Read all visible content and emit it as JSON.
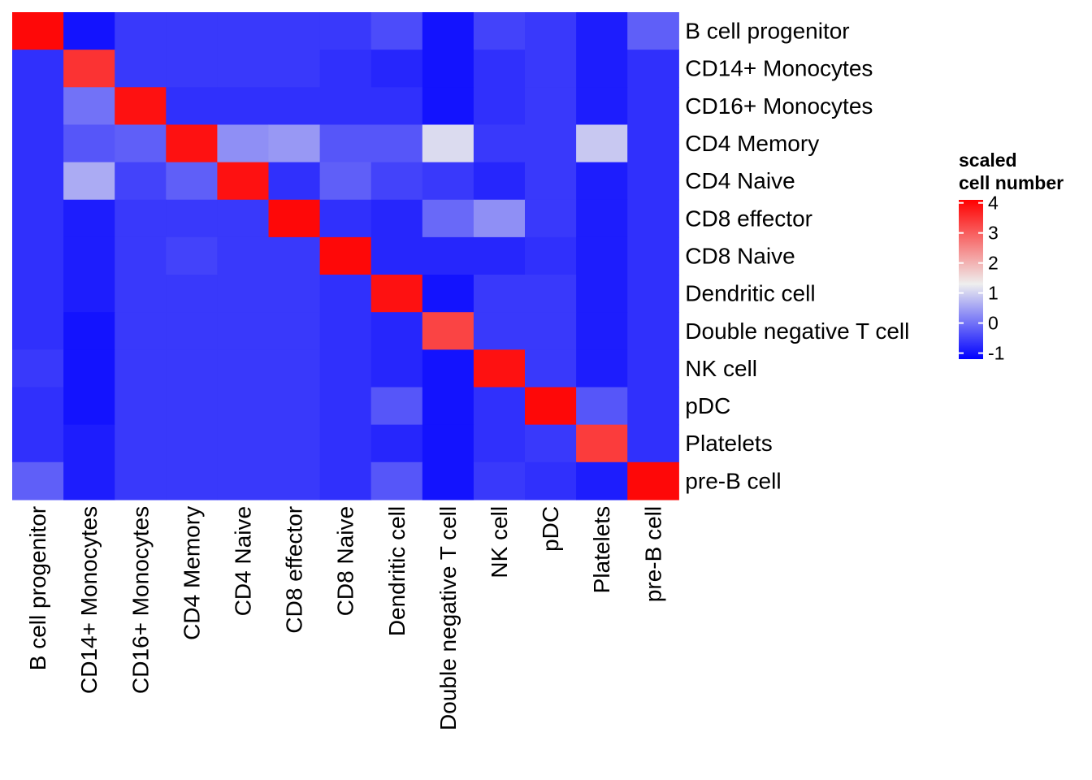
{
  "chart_data": {
    "type": "heatmap",
    "rows": [
      "B cell progenitor",
      "CD14+ Monocytes",
      "CD16+ Monocytes",
      "CD4 Memory",
      "CD4 Naive",
      "CD8 effector",
      "CD8 Naive",
      "Dendritic cell",
      "Double negative T cell",
      "NK cell",
      "pDC",
      "Platelets",
      "pre-B cell"
    ],
    "columns": [
      "B cell progenitor",
      "CD14+ Monocytes",
      "CD16+ Monocytes",
      "CD4 Memory",
      "CD4 Naive",
      "CD8 effector",
      "CD8 Naive",
      "Dendritic cell",
      "Double negative T cell",
      "NK cell",
      "pDC",
      "Platelets",
      "pre-B cell"
    ],
    "values": [
      [
        4.0,
        -1.0,
        -0.6,
        -0.6,
        -0.6,
        -0.6,
        -0.6,
        -0.4,
        -1.0,
        -0.5,
        -0.6,
        -0.9,
        -0.2
      ],
      [
        -0.7,
        3.5,
        -0.6,
        -0.6,
        -0.6,
        -0.6,
        -0.7,
        -0.8,
        -1.0,
        -0.7,
        -0.6,
        -0.9,
        -0.7
      ],
      [
        -0.7,
        0.0,
        3.9,
        -0.7,
        -0.7,
        -0.7,
        -0.7,
        -0.7,
        -1.0,
        -0.7,
        -0.6,
        -0.9,
        -0.7
      ],
      [
        -0.7,
        -0.3,
        -0.2,
        3.9,
        0.3,
        0.4,
        -0.3,
        -0.3,
        1.1,
        -0.6,
        -0.6,
        0.9,
        -0.7
      ],
      [
        -0.7,
        0.6,
        -0.5,
        -0.2,
        3.9,
        -0.7,
        -0.2,
        -0.5,
        -0.6,
        -0.8,
        -0.6,
        -0.9,
        -0.7
      ],
      [
        -0.7,
        -0.9,
        -0.6,
        -0.6,
        -0.6,
        4.0,
        -0.7,
        -0.8,
        -0.1,
        0.3,
        -0.6,
        -0.9,
        -0.7
      ],
      [
        -0.7,
        -0.9,
        -0.6,
        -0.5,
        -0.6,
        -0.6,
        4.0,
        -0.8,
        -0.8,
        -0.8,
        -0.7,
        -0.9,
        -0.7
      ],
      [
        -0.7,
        -0.9,
        -0.6,
        -0.6,
        -0.6,
        -0.6,
        -0.7,
        3.9,
        -1.0,
        -0.6,
        -0.6,
        -0.9,
        -0.7
      ],
      [
        -0.7,
        -1.0,
        -0.6,
        -0.6,
        -0.6,
        -0.6,
        -0.7,
        -0.8,
        3.3,
        -0.6,
        -0.6,
        -0.9,
        -0.7
      ],
      [
        -0.6,
        -1.0,
        -0.6,
        -0.6,
        -0.6,
        -0.6,
        -0.7,
        -0.8,
        -1.0,
        3.9,
        -0.6,
        -0.9,
        -0.7
      ],
      [
        -0.7,
        -1.0,
        -0.6,
        -0.6,
        -0.6,
        -0.6,
        -0.7,
        -0.3,
        -1.0,
        -0.7,
        4.0,
        -0.3,
        -0.7
      ],
      [
        -0.7,
        -0.9,
        -0.6,
        -0.6,
        -0.6,
        -0.6,
        -0.7,
        -0.8,
        -1.0,
        -0.7,
        -0.6,
        3.4,
        -0.7
      ],
      [
        -0.2,
        -0.9,
        -0.6,
        -0.6,
        -0.6,
        -0.6,
        -0.7,
        -0.3,
        -1.0,
        -0.6,
        -0.7,
        -0.9,
        4.0
      ]
    ],
    "color_scale": {
      "title_lines": [
        "scaled",
        "cell number"
      ],
      "min": -1.2,
      "mid": 1.3,
      "max": 4.1,
      "low_color": "#0000ff",
      "mid_color": "#eeeeee",
      "high_color": "#ff0000",
      "ticks": [
        4,
        3,
        2,
        1,
        0,
        -1
      ],
      "tick_labels": [
        "4",
        "3",
        "2",
        "1",
        "0",
        "-1"
      ],
      "legend_position": "right"
    }
  }
}
